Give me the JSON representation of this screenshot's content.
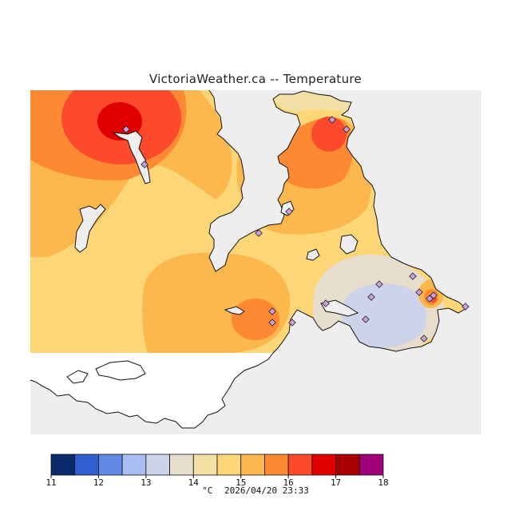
{
  "title": "VictoriaWeather.ca -- Temperature",
  "legend": {
    "unit": "°C",
    "ticks": [
      "11",
      "12",
      "13",
      "14",
      "15",
      "16",
      "17",
      "18"
    ],
    "colors": [
      "#0a2a6b",
      "#2f5fd0",
      "#5f89e3",
      "#a9bdf2",
      "#cdd3e8",
      "#e6ddcd",
      "#f3e0a5",
      "#fdd678",
      "#fdb84d",
      "#fd8a33",
      "#fd4a2d",
      "#e00000",
      "#a80000",
      "#a0007a"
    ]
  },
  "timestamp": "2026/04/20 23:33",
  "map_colors": {
    "water": "#eeeeee",
    "land_blank": "#ffffff",
    "coast": "#111111",
    "station": "#c8a0d8"
  },
  "station_count": 19
}
